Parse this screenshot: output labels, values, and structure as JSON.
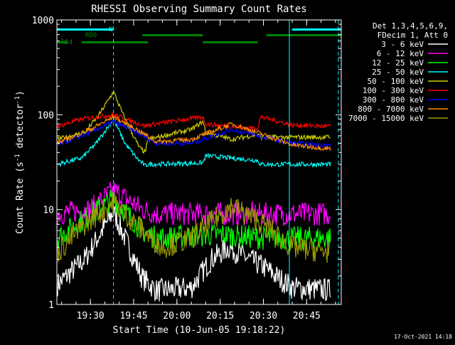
{
  "chart_data": {
    "type": "line",
    "title": "RHESSI Observing Summary Count Rates",
    "xlabel": "Start Time (10-Jun-05 19:18:22)",
    "ylabel_parts": [
      "Count Rate (s",
      "-1",
      " detector",
      "-1",
      ")"
    ],
    "y_scale": "log",
    "ylim": [
      1,
      1000
    ],
    "y_ticks": [
      {
        "value": 1,
        "label": "1"
      },
      {
        "value": 10,
        "label": "10"
      },
      {
        "value": 100,
        "label": "100"
      },
      {
        "value": 1000,
        "label": "1000"
      }
    ],
    "xlim": [
      "19:18:22",
      "20:57:00"
    ],
    "x_ticks": [
      {
        "minute": 90,
        "label": "19:30"
      },
      {
        "minute": 105,
        "label": "19:45"
      },
      {
        "minute": 120,
        "label": "20:00"
      },
      {
        "minute": 135,
        "label": "20:15"
      },
      {
        "minute": 150,
        "label": "20:30"
      },
      {
        "minute": 165,
        "label": "20:45"
      }
    ],
    "timestamp": "17-Oct-2021 14:18",
    "legend_header": [
      "Det 1,3,4,5,6,9,",
      "FDecim 1, Att 0"
    ],
    "flags": [
      {
        "name": "N",
        "color": "#00ffff",
        "segments": [
          [
            "19:18:22",
            "19:38:00"
          ],
          [
            "20:40:00",
            "20:57:00"
          ]
        ]
      },
      {
        "name": "RD0",
        "color": "#007f00",
        "segments": [
          [
            "19:48:00",
            "20:09:00"
          ],
          [
            "20:31:00",
            "20:57:00"
          ]
        ]
      },
      {
        "name": "RD4",
        "color": "#007f00",
        "segments": [
          [
            "19:18:22",
            "19:22:00"
          ],
          [
            "19:27:00",
            "19:50:00"
          ],
          [
            "20:09:00",
            "20:28:00"
          ]
        ]
      }
    ],
    "event_lines": [
      {
        "time": "19:38:00",
        "style": "dashed",
        "color": "#00ffff"
      },
      {
        "time": "20:56:00",
        "style": "dashed",
        "color": "#00ffff"
      },
      {
        "time": "20:39:00",
        "style": "solid",
        "color": "#00ffff"
      }
    ],
    "series": [
      {
        "name": "3 - 6 keV",
        "color": "#ffffff",
        "points": [
          [
            "19:18:22",
            1.6
          ],
          [
            "19:28:00",
            3
          ],
          [
            "19:38:00",
            9.5
          ],
          [
            "19:48:00",
            1.9
          ],
          [
            "19:53:00",
            1.4
          ],
          [
            "20:05:00",
            1.5
          ],
          [
            "20:12:00",
            3
          ],
          [
            "20:18:00",
            4
          ],
          [
            "20:25:00",
            3
          ],
          [
            "20:30:00",
            2.5
          ],
          [
            "20:40:00",
            1.5
          ],
          [
            "20:56:00",
            1.4
          ]
        ]
      },
      {
        "name": "6 - 12 keV",
        "color": "#ff00ff",
        "points": [
          [
            "19:18:22",
            9
          ],
          [
            "19:30:00",
            10
          ],
          [
            "19:38:00",
            16
          ],
          [
            "19:48:00",
            10
          ],
          [
            "19:53:00",
            9
          ],
          [
            "20:56:00",
            9
          ]
        ]
      },
      {
        "name": "12 - 25 keV",
        "color": "#00ff00",
        "points": [
          [
            "19:18:22",
            5
          ],
          [
            "19:28:00",
            8
          ],
          [
            "19:38:00",
            13
          ],
          [
            "19:48:00",
            6
          ],
          [
            "19:53:00",
            5
          ],
          [
            "20:15:00",
            5.5
          ],
          [
            "20:30:00",
            5
          ],
          [
            "20:56:00",
            5
          ]
        ]
      },
      {
        "name": "25 - 50 keV",
        "color": "#00ffff",
        "points": [
          [
            "19:18:22",
            30
          ],
          [
            "19:27:00",
            35
          ],
          [
            "19:32:00",
            50
          ],
          [
            "19:38:00",
            90
          ],
          [
            "19:42:00",
            50
          ],
          [
            "19:46:00",
            35
          ],
          [
            "19:49:00",
            29
          ],
          [
            "19:50:00",
            30
          ],
          [
            "20:09:00",
            31
          ],
          [
            "20:10:00",
            37
          ],
          [
            "20:28:00",
            33
          ],
          [
            "20:29:00",
            30
          ],
          [
            "20:56:00",
            30
          ]
        ]
      },
      {
        "name": "50 - 100 keV",
        "color": "#cccc00",
        "points": [
          [
            "19:18:22",
            55
          ],
          [
            "19:28:00",
            65
          ],
          [
            "19:33:00",
            100
          ],
          [
            "19:38:00",
            175
          ],
          [
            "19:42:00",
            90
          ],
          [
            "19:47:00",
            45
          ],
          [
            "19:49:00",
            40
          ],
          [
            "19:50:00",
            55
          ],
          [
            "20:05:00",
            70
          ],
          [
            "20:09:00",
            85
          ],
          [
            "20:10:00",
            65
          ],
          [
            "20:19:00",
            55
          ],
          [
            "20:28:00",
            62
          ],
          [
            "20:29:00",
            58
          ],
          [
            "20:56:00",
            58
          ]
        ]
      },
      {
        "name": "100 - 300 keV",
        "color": "#ff0000",
        "points": [
          [
            "19:18:22",
            75
          ],
          [
            "19:27:00",
            90
          ],
          [
            "19:38:00",
            100
          ],
          [
            "19:49:00",
            76
          ],
          [
            "19:50:00",
            78
          ],
          [
            "20:09:00",
            95
          ],
          [
            "20:10:00",
            80
          ],
          [
            "20:19:00",
            75
          ],
          [
            "20:28:00",
            72
          ],
          [
            "20:29:00",
            95
          ],
          [
            "20:40:00",
            78
          ],
          [
            "20:56:00",
            75
          ]
        ]
      },
      {
        "name": "300 - 800 keV",
        "color": "#0000ff",
        "points": [
          [
            "19:18:22",
            48
          ],
          [
            "19:30:00",
            65
          ],
          [
            "19:38:00",
            85
          ],
          [
            "19:46:00",
            65
          ],
          [
            "19:53:00",
            50
          ],
          [
            "20:05:00",
            50
          ],
          [
            "20:19:00",
            70
          ],
          [
            "20:28:00",
            60
          ],
          [
            "20:40:00",
            50
          ],
          [
            "20:56:00",
            47
          ]
        ]
      },
      {
        "name": "800 - 7000 keV",
        "color": "#ff8c00",
        "points": [
          [
            "19:18:22",
            50
          ],
          [
            "19:30:00",
            70
          ],
          [
            "19:38:00",
            95
          ],
          [
            "19:46:00",
            70
          ],
          [
            "19:53:00",
            52
          ],
          [
            "20:05:00",
            55
          ],
          [
            "20:19:00",
            80
          ],
          [
            "20:28:00",
            65
          ],
          [
            "20:40:00",
            48
          ],
          [
            "20:56:00",
            43
          ]
        ]
      },
      {
        "name": "7000 - 15000 keV",
        "color": "#999900",
        "points": [
          [
            "19:18:22",
            3.5
          ],
          [
            "19:28:00",
            7
          ],
          [
            "19:38:00",
            12
          ],
          [
            "19:48:00",
            6
          ],
          [
            "19:55:00",
            4
          ],
          [
            "20:05:00",
            5
          ],
          [
            "20:19:00",
            11
          ],
          [
            "20:30:00",
            7
          ],
          [
            "20:40:00",
            4
          ],
          [
            "20:56:00",
            3.5
          ]
        ]
      }
    ]
  }
}
